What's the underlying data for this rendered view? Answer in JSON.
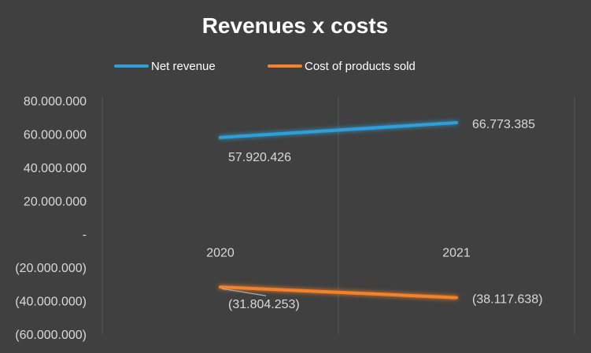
{
  "chart_data": {
    "type": "line",
    "title": "Revenues x costs",
    "categories": [
      "2020",
      "2021"
    ],
    "series": [
      {
        "name": "Net revenue",
        "values": [
          57920426,
          66773385
        ],
        "labels": [
          "57.920.426",
          "66.773.385"
        ],
        "color": "#2e9fd8"
      },
      {
        "name": "Cost of products sold",
        "values": [
          -31804253,
          -38117638
        ],
        "labels": [
          "(31.804.253)",
          "(38.117.638)"
        ],
        "color": "#f5822a"
      }
    ],
    "ylim": [
      -60000000,
      80000000
    ],
    "ytick_labels": [
      "80.000.000",
      "60.000.000",
      "40.000.000",
      "20.000.000",
      "-",
      "(20.000.000)",
      "(40.000.000)",
      "(60.000.000)"
    ],
    "legend_position": "top",
    "grid": "vertical"
  }
}
